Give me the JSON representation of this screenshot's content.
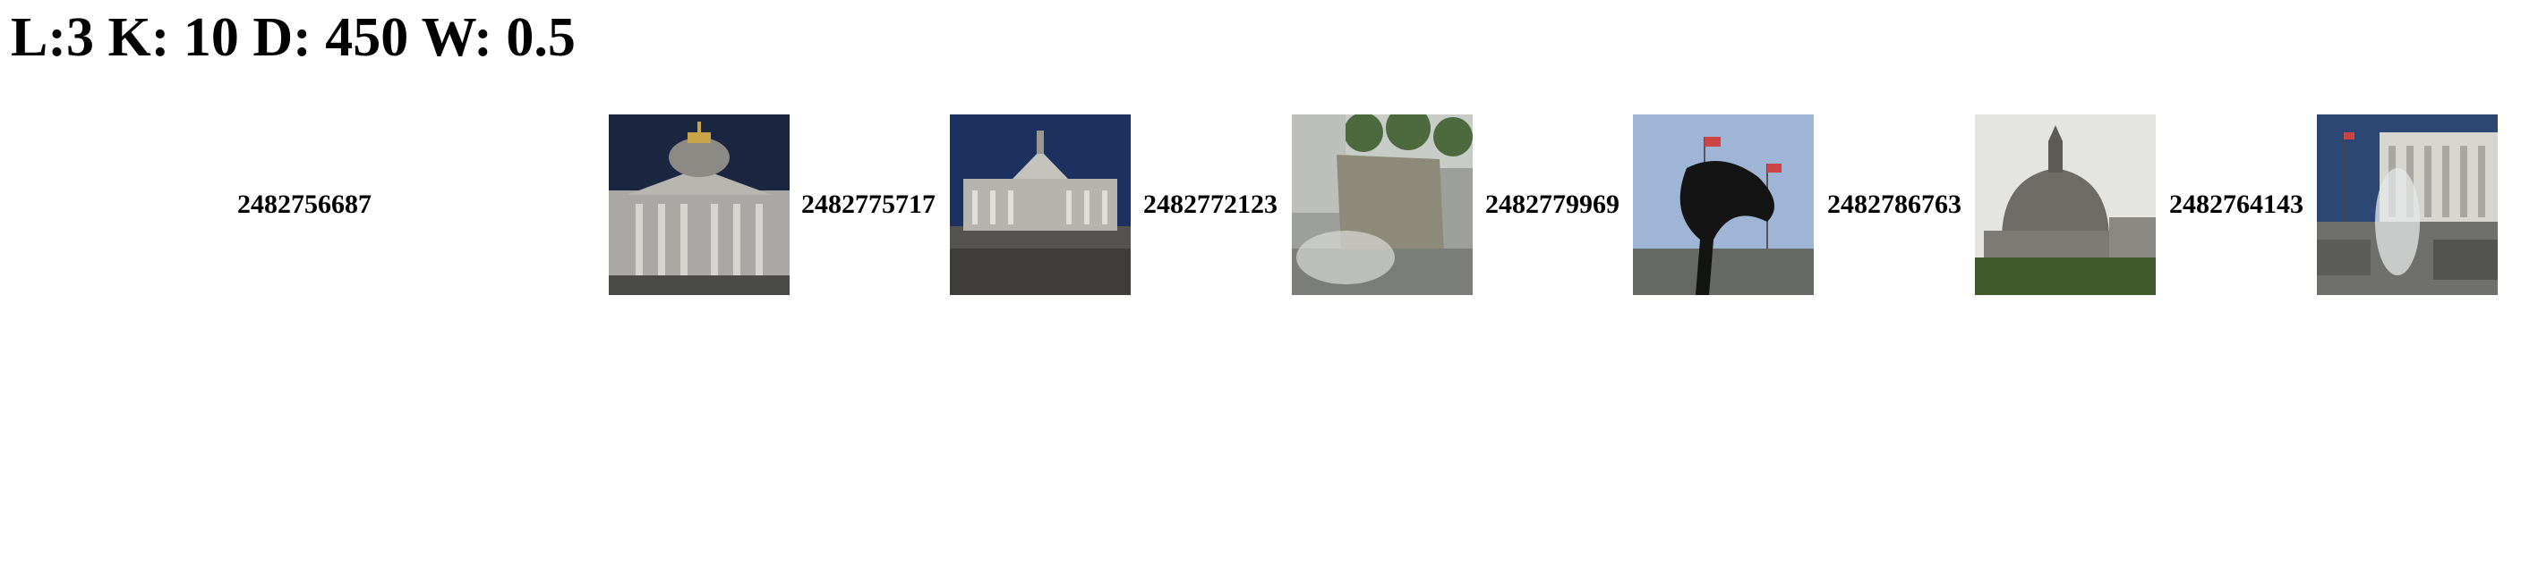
{
  "header": {
    "title": "L:3 K: 10 D: 450 W: 0.5"
  },
  "results": [
    {
      "id": "2482756687",
      "image": "city-hall-facade-dark-sky"
    },
    {
      "id": "2482775717",
      "image": "city-hall-plaza-wide"
    },
    {
      "id": "2482772123",
      "image": "fountain-stone-plaque"
    },
    {
      "id": "2482779969",
      "image": "dark-sculpture-with-flags"
    },
    {
      "id": "2482786763",
      "image": "dome-overcast-sky"
    },
    {
      "id": "2482764143",
      "image": "government-building-fountain"
    }
  ]
}
